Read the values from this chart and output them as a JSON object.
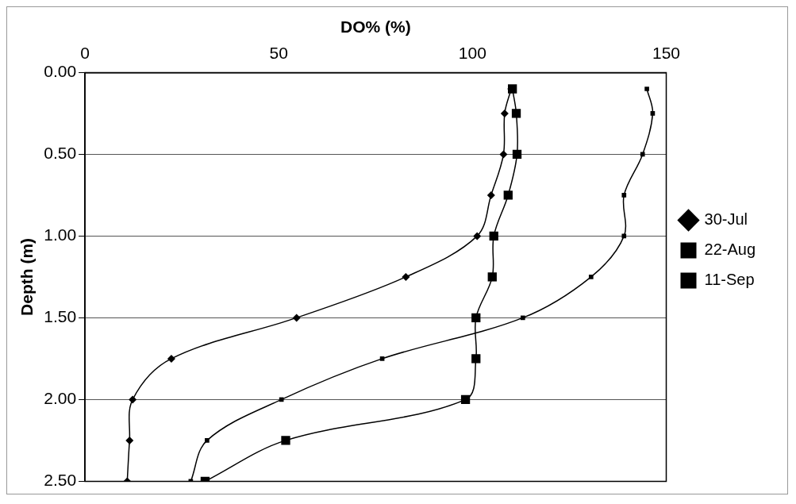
{
  "chart_data": {
    "type": "line",
    "xlabel": "DO% (%)",
    "ylabel": "Depth (m)",
    "xlim": [
      0,
      150
    ],
    "xticks": [
      0,
      50,
      100,
      150
    ],
    "ylim": [
      2.5,
      0
    ],
    "yticks": [
      {
        "value": 0,
        "label": "0.00"
      },
      {
        "value": 0.5,
        "label": "0.50"
      },
      {
        "value": 1,
        "label": "1.00"
      },
      {
        "value": 1.5,
        "label": "1.50"
      },
      {
        "value": 2,
        "label": "2.00"
      },
      {
        "value": 2.5,
        "label": "2.50"
      }
    ],
    "grid": "y",
    "legend": "right",
    "series": [
      {
        "name": "30-Jul",
        "color": "#000000",
        "marker": "diamond",
        "x": [
          110,
          108.3,
          108,
          104.8,
          101.2,
          82.8,
          54.6,
          22.3,
          12.3,
          11.5,
          10.9
        ],
        "values": [
          0.1,
          0.25,
          0.5,
          0.75,
          1,
          1.25,
          1.5,
          1.75,
          2,
          2.25,
          2.5
        ]
      },
      {
        "name": "22-Aug",
        "color": "#000000",
        "marker": "square",
        "x": [
          145,
          146.5,
          143.9,
          139.1,
          139.1,
          130.6,
          113,
          76.7,
          50.7,
          31.5,
          27.3
        ],
        "values": [
          0.1,
          0.25,
          0.5,
          0.75,
          1,
          1.25,
          1.5,
          1.75,
          2,
          2.25,
          2.5
        ]
      },
      {
        "name": "11-Sep",
        "color": "#000000",
        "marker": "square",
        "x": [
          110.3,
          111.3,
          111.5,
          109.2,
          105.5,
          105.1,
          100.9,
          100.9,
          98.2,
          51.8,
          31
        ],
        "values": [
          0.1,
          0.25,
          0.5,
          0.75,
          1,
          1.25,
          1.5,
          1.75,
          2,
          2.25,
          2.5
        ]
      }
    ]
  }
}
